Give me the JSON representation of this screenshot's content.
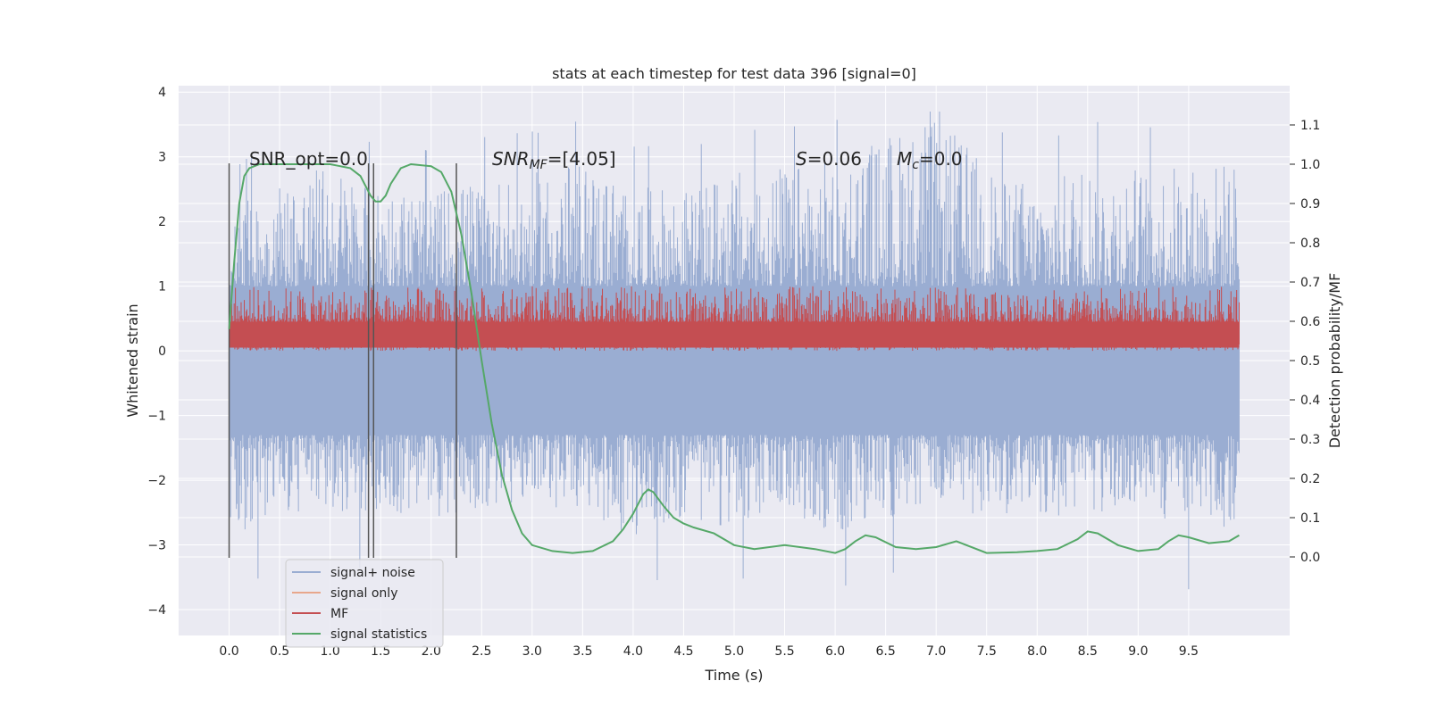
{
  "chart_data": {
    "type": "line",
    "title": "stats at each timestep for test data 396 [signal=0]",
    "xlabel": "Time (s)",
    "ylabel_left": "Whitened strain",
    "ylabel_right": "Detection probability/MF",
    "xlim": [
      -0.5,
      10.5
    ],
    "ylim_left": [
      -4.4,
      4.1
    ],
    "ylim_right": [
      -0.2,
      1.2
    ],
    "x_ticks": [
      0.0,
      0.5,
      1.0,
      1.5,
      2.0,
      2.5,
      3.0,
      3.5,
      4.0,
      4.5,
      5.0,
      5.5,
      6.0,
      6.5,
      7.0,
      7.5,
      8.0,
      8.5,
      9.0,
      9.5
    ],
    "x_tick_labels": [
      "0.0",
      "0.5",
      "1.0",
      "1.5",
      "2.0",
      "2.5",
      "3.0",
      "3.5",
      "4.0",
      "4.5",
      "5.0",
      "5.5",
      "6.0",
      "6.5",
      "7.0",
      "7.5",
      "8.0",
      "8.5",
      "9.0",
      "9.5"
    ],
    "y_left_ticks": [
      -4,
      -3,
      -2,
      -1,
      0,
      1,
      2,
      3,
      4
    ],
    "y_left_tick_labels": [
      "−4",
      "−3",
      "−2",
      "−1",
      "0",
      "1",
      "2",
      "3",
      "4"
    ],
    "y_right_ticks": [
      0.0,
      0.1,
      0.2,
      0.3,
      0.4,
      0.5,
      0.6,
      0.7,
      0.8,
      0.9,
      1.0,
      1.1
    ],
    "y_right_tick_labels": [
      "0.0",
      "0.1",
      "0.2",
      "0.3",
      "0.4",
      "0.5",
      "0.6",
      "0.7",
      "0.8",
      "0.9",
      "1.0",
      "1.1"
    ],
    "grid": true,
    "background_color": "#eaeaf2",
    "grid_color": "#ffffff",
    "legend_placement": "lower-left",
    "legend": [
      {
        "label": "signal+ noise",
        "color": "#9aadd2"
      },
      {
        "label": "signal only",
        "color": "#e8a78c"
      },
      {
        "label": "MF",
        "color": "#c44e52"
      },
      {
        "label": "signal statistics",
        "color": "#55a868"
      }
    ],
    "annotations": {
      "snr_opt": "SNR_opt=0.0",
      "snr_mf_main": "SNR",
      "snr_mf_sub": "MF",
      "snr_mf_tail": "=[4.05]",
      "s_main": "S",
      "s_tail": "=0.06",
      "mc_main": "M",
      "mc_sub": "c",
      "mc_tail": "=0.0"
    },
    "vertical_markers": [
      0.0,
      1.38,
      1.43,
      2.25
    ],
    "series": [
      {
        "name": "signal+ noise",
        "axis": "left",
        "color": "#9aadd2",
        "x_range": [
          0.0,
          10.0
        ],
        "envelope_upper": [
          2.2,
          2.7,
          2.9,
          2.6,
          2.5,
          2.7,
          2.8,
          3.0,
          2.6,
          2.5,
          2.8,
          2.9,
          3.0,
          3.4,
          3.7,
          2.9,
          2.6,
          3.0,
          2.9,
          2.9,
          3.0
        ],
        "envelope_lower": [
          -2.9,
          -2.6,
          -2.5,
          -2.6,
          -2.6,
          -2.5,
          -2.3,
          -2.6,
          -2.9,
          -2.6,
          -2.8,
          -2.5,
          -2.9,
          -2.7,
          -2.4,
          -2.6,
          -2.5,
          -2.7,
          -2.4,
          -2.9,
          -2.7
        ],
        "max": 3.7,
        "min": -4.05
      },
      {
        "name": "MF",
        "axis": "left",
        "color": "#c44e52",
        "x_range": [
          0.0,
          10.0
        ],
        "center": 0.3,
        "upper": 1.0,
        "lower": 0.0
      },
      {
        "name": "signal statistics",
        "axis": "right",
        "color": "#55a868",
        "x": [
          0.0,
          0.05,
          0.1,
          0.15,
          0.2,
          0.3,
          0.5,
          0.8,
          1.0,
          1.1,
          1.2,
          1.3,
          1.4,
          1.45,
          1.5,
          1.55,
          1.6,
          1.7,
          1.8,
          2.0,
          2.1,
          2.2,
          2.3,
          2.4,
          2.5,
          2.6,
          2.7,
          2.8,
          2.9,
          3.0,
          3.2,
          3.4,
          3.6,
          3.8,
          3.9,
          4.0,
          4.1,
          4.15,
          4.2,
          4.3,
          4.4,
          4.5,
          4.6,
          4.8,
          5.0,
          5.2,
          5.5,
          5.8,
          6.0,
          6.1,
          6.2,
          6.3,
          6.4,
          6.6,
          6.8,
          7.0,
          7.2,
          7.5,
          7.8,
          8.0,
          8.2,
          8.4,
          8.5,
          8.6,
          8.8,
          9.0,
          9.2,
          9.3,
          9.4,
          9.5,
          9.7,
          9.9,
          10.0
        ],
        "y": [
          0.58,
          0.75,
          0.9,
          0.97,
          0.99,
          1.0,
          1.0,
          1.0,
          1.0,
          0.995,
          0.99,
          0.97,
          0.92,
          0.905,
          0.905,
          0.92,
          0.95,
          0.99,
          1.0,
          0.995,
          0.98,
          0.93,
          0.82,
          0.67,
          0.5,
          0.34,
          0.21,
          0.12,
          0.06,
          0.03,
          0.015,
          0.01,
          0.015,
          0.04,
          0.07,
          0.11,
          0.16,
          0.172,
          0.165,
          0.13,
          0.1,
          0.085,
          0.075,
          0.06,
          0.03,
          0.02,
          0.03,
          0.02,
          0.01,
          0.02,
          0.04,
          0.055,
          0.05,
          0.025,
          0.02,
          0.025,
          0.04,
          0.01,
          0.012,
          0.015,
          0.02,
          0.045,
          0.065,
          0.06,
          0.03,
          0.015,
          0.02,
          0.04,
          0.055,
          0.05,
          0.035,
          0.04,
          0.055
        ]
      }
    ]
  }
}
